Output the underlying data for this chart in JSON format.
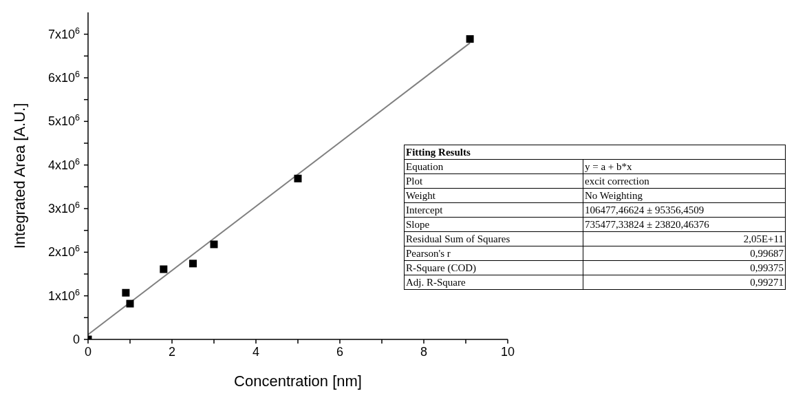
{
  "chart_data": {
    "type": "scatter",
    "xlabel": "Concentration [nm]",
    "ylabel": "Integrated Area [A.U.]",
    "xlim": [
      0,
      10
    ],
    "ylim": [
      0,
      7500000
    ],
    "xticks": [
      0,
      {
        "value": 1,
        "label": null
      },
      2,
      {
        "value": 3,
        "label": null
      },
      4,
      {
        "value": 5,
        "label": null
      },
      6,
      {
        "value": 7,
        "label": null
      },
      8,
      {
        "value": 9,
        "label": null
      },
      10
    ],
    "yticks": [
      0,
      {
        "value": 500000,
        "label": null
      },
      {
        "value": 1000000,
        "label": "1x10$^{6}$"
      },
      {
        "value": 1500000,
        "label": null
      },
      {
        "value": 2000000,
        "label": "2x10$^{6}$"
      },
      {
        "value": 2500000,
        "label": null
      },
      {
        "value": 3000000,
        "label": "3x10$^{6}$"
      },
      {
        "value": 3500000,
        "label": null
      },
      {
        "value": 4000000,
        "label": "4x10$^{6}$"
      },
      {
        "value": 4500000,
        "label": null
      },
      {
        "value": 5000000,
        "label": "5x10$^{6}$"
      },
      {
        "value": 5500000,
        "label": null
      },
      {
        "value": 6000000,
        "label": "6x10$^{6}$"
      },
      {
        "value": 6500000,
        "label": null
      },
      {
        "value": 7000000,
        "label": "7x10$^{6}$"
      }
    ],
    "marker": "square",
    "series": [
      {
        "color": "#000000",
        "x": [
          0,
          0.9,
          1.0,
          1.8,
          2.5,
          3.0,
          5.0,
          9.1
        ],
        "values": [
          0,
          1070000,
          820000,
          1610000,
          1740000,
          2180000,
          3690000,
          6890000
        ]
      },
      {
        "type": "line",
        "marker": "none",
        "color": "#808080",
        "x": [
          0,
          9.1
        ],
        "values": [
          110000,
          6800000
        ]
      }
    ],
    "annotations": [
      "Fitting Results",
      "Equation",
      "y = a + b*x",
      "Plot",
      "excit correction",
      "Weight",
      "No Weighting",
      "Intercept",
      "106477,46624 ± 95356,4509",
      "Slope",
      "735477,33824 ± 23820,46376",
      "Residual Sum of Squares",
      "2,05E+11",
      "Pearson's r",
      "0,99687",
      "R-Square (COD)",
      "0,99375",
      "Adj. R-Square",
      "0,99271"
    ]
  }
}
